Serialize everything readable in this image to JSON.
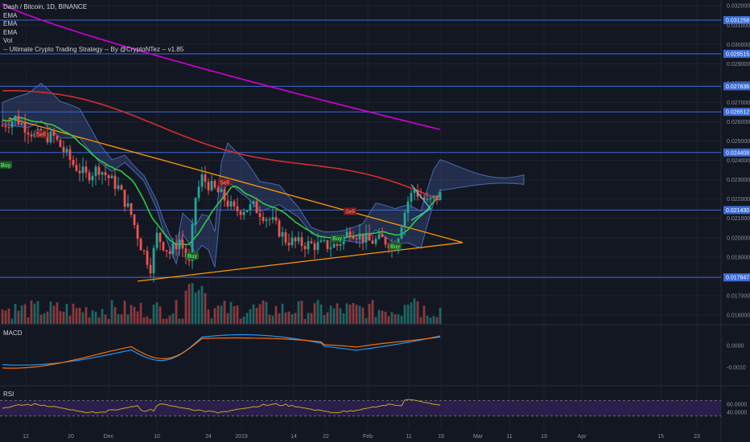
{
  "legend": {
    "title": "Dash / Bitcoin, 1D, BINANCE",
    "lines": [
      "EMA",
      "EMA",
      "EMA",
      "Vol",
      "-- Ultimate Crypto Trading Strategy -- By @CryptoNTez -- v1.85"
    ]
  },
  "panels": {
    "macd_label": "MACD",
    "rsi_label": "RSI"
  },
  "colors": {
    "background": "#131722",
    "grid": "#1e222d",
    "up": "#26a69a",
    "down": "#ef5350",
    "level": "#3b6bd6",
    "ema_magenta": "#d400d4",
    "ema_red": "#d32f2f",
    "ema_green": "#2ecc40",
    "cloud": "#5b86e5",
    "trendline": "#ff9800",
    "wedge": "#4dd0e1",
    "macd": "#2196f3",
    "signal": "#ff6d00",
    "rsi": "#c9a227",
    "rsi_band": "#2a1f4a"
  },
  "chart_data": {
    "type": "candlestick",
    "symbol": "Dash / Bitcoin",
    "timeframe": "1D",
    "exchange": "BINANCE",
    "x_tick_labels": [
      "12",
      "20",
      "Dec",
      "10",
      "24",
      "2019",
      "14",
      "22",
      "Feb",
      "11",
      "19",
      "Mar",
      "11",
      "19",
      "Apr",
      "15",
      "23"
    ],
    "y_ticks": [
      0.032,
      0.031,
      0.03,
      0.029,
      0.028,
      0.027,
      0.026,
      0.025,
      0.024,
      0.023,
      0.022,
      0.021,
      0.02,
      0.019,
      0.018,
      0.017,
      0.016
    ],
    "y_tick_labels": [
      "0.032000",
      "0.031000",
      "0.030000",
      "0.029000",
      "0.028000",
      "0.027000",
      "0.026000",
      "0.025000",
      "0.024000",
      "0.023000",
      "0.022000",
      "0.021000",
      "0.020000",
      "0.019000",
      "0.018000",
      "0.017000",
      "0.016000"
    ],
    "ylim": [
      0.0155,
      0.0323
    ],
    "levels": [
      {
        "value": 0.031258,
        "label": "0.031258"
      },
      {
        "value": 0.029515,
        "label": "0.029515"
      },
      {
        "value": 0.027836,
        "label": "0.027836"
      },
      {
        "value": 0.026512,
        "label": "0.026512"
      },
      {
        "value": 0.024408,
        "label": "0.024408"
      },
      {
        "value": 0.02143,
        "label": "0.021430"
      },
      {
        "value": 0.017947,
        "label": "0.017947"
      }
    ],
    "ema_magenta": {
      "start": 0.0321,
      "end": 0.0256
    },
    "signals": [
      {
        "text": "Buy",
        "bar": 1,
        "value": 0.0237,
        "kind": "buy"
      },
      {
        "text": "Sell",
        "bar": 12,
        "value": 0.0253,
        "kind": "sell"
      },
      {
        "text": "Buy",
        "bar": 59,
        "value": 0.019,
        "kind": "buy"
      },
      {
        "text": "Sell",
        "bar": 69,
        "value": 0.0228,
        "kind": "sell"
      },
      {
        "text": "Sell",
        "bar": 108,
        "value": 0.0213,
        "kind": "sell"
      },
      {
        "text": "Buy",
        "bar": 104,
        "value": 0.0199,
        "kind": "buy"
      },
      {
        "text": "Buy",
        "bar": 122,
        "value": 0.0195,
        "kind": "buy"
      }
    ],
    "macd_ticks": [
      {
        "value": 0.0,
        "label": "0.0000"
      },
      {
        "value": -0.001,
        "label": "-0.0010"
      }
    ],
    "rsi_ticks": [
      {
        "value": 60,
        "label": "60.0000"
      },
      {
        "value": 40,
        "label": "40.0000"
      }
    ],
    "rsi_band": [
      30,
      70
    ]
  }
}
